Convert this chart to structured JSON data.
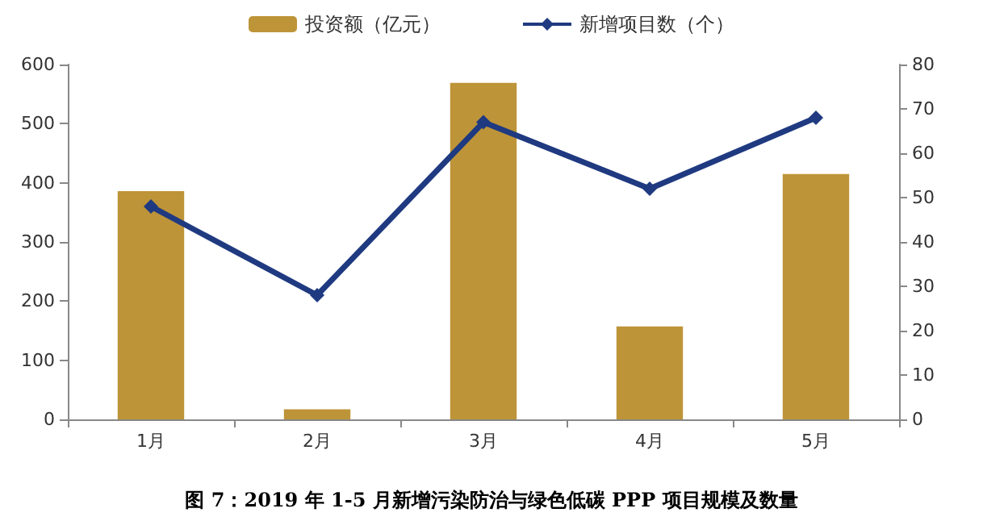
{
  "chart_data": {
    "type": "bar",
    "title": "图 7：2019 年 1-5 月新增污染防治与绿色低碳 PPP 项目规模及数量",
    "categories": [
      "1月",
      "2月",
      "3月",
      "4月",
      "5月"
    ],
    "series": [
      {
        "name": "投资额（亿元）",
        "color": "#be9438",
        "values": [
          386,
          17,
          569,
          157,
          415
        ]
      },
      {
        "name": "新增项目数（个）",
        "type": "line",
        "axis": "y2",
        "color": "#1f3a80",
        "marker": "diamond",
        "values": [
          48,
          28,
          67,
          52,
          68
        ]
      }
    ],
    "ylim": [
      0,
      600
    ],
    "yticks": [
      0,
      100,
      200,
      300,
      400,
      500,
      600
    ],
    "y2lim": [
      0,
      80
    ],
    "y2ticks": [
      0,
      10,
      20,
      30,
      40,
      50,
      60,
      70,
      80
    ],
    "grid": false,
    "legend": "top"
  }
}
